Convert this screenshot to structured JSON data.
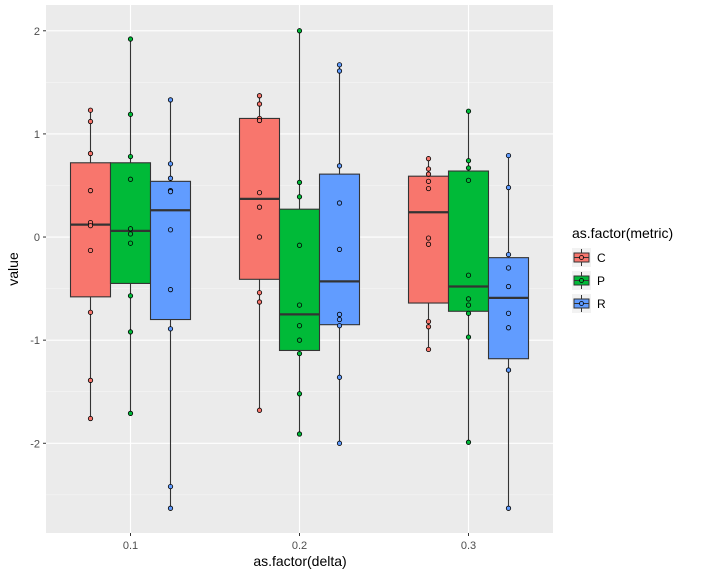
{
  "chart_data": {
    "type": "boxplot",
    "title": "",
    "xlabel": "as.factor(delta)",
    "ylabel": "value",
    "ylim": [
      -2.87,
      2.25
    ],
    "yticks": [
      -2,
      -1,
      0,
      1,
      2
    ],
    "ytick_labels": [
      "-2",
      "-1",
      "0",
      "1",
      "2"
    ],
    "categories": [
      "0.1",
      "0.2",
      "0.3"
    ],
    "grid": true,
    "legend": {
      "title": "as.factor(metric)",
      "placement": "right",
      "entries": [
        "C",
        "P",
        "R"
      ]
    },
    "colors": {
      "C": "#F8766D",
      "P": "#00BA38",
      "R": "#619CFF"
    },
    "series": [
      {
        "name": "C",
        "boxes": [
          {
            "q1": -0.58,
            "median": 0.12,
            "q3": 0.72,
            "min": -1.76,
            "max": 1.23,
            "points": [
              1.23,
              1.12,
              0.81,
              0.45,
              0.14,
              0.11,
              -0.13,
              -0.73,
              -1.39,
              -1.76
            ]
          },
          {
            "q1": -0.41,
            "median": 0.37,
            "q3": 1.15,
            "min": -1.68,
            "max": 1.37,
            "points": [
              1.37,
              1.29,
              1.15,
              1.13,
              0.43,
              0.29,
              0.0,
              -0.54,
              -0.63,
              -1.68
            ]
          },
          {
            "q1": -0.64,
            "median": 0.24,
            "q3": 0.59,
            "min": -1.09,
            "max": 0.76,
            "points": [
              0.76,
              0.66,
              0.61,
              0.54,
              0.47,
              -0.01,
              -0.07,
              -0.82,
              -0.87,
              -1.09
            ]
          }
        ]
      },
      {
        "name": "P",
        "boxes": [
          {
            "q1": -0.45,
            "median": 0.06,
            "q3": 0.72,
            "min": -1.71,
            "max": 1.92,
            "points": [
              1.92,
              1.19,
              0.78,
              0.56,
              0.08,
              0.03,
              -0.06,
              -0.57,
              -0.92,
              -1.71
            ]
          },
          {
            "q1": -1.1,
            "median": -0.75,
            "q3": 0.27,
            "min": -1.91,
            "max": 2.0,
            "points": [
              2.0,
              0.53,
              0.39,
              -0.08,
              -0.66,
              -0.86,
              -1.0,
              -1.13,
              -1.52,
              -1.91
            ]
          },
          {
            "q1": -0.72,
            "median": -0.48,
            "q3": 0.64,
            "min": -1.99,
            "max": 1.22,
            "points": [
              1.22,
              0.74,
              0.67,
              0.55,
              -0.37,
              -0.6,
              -0.66,
              -0.74,
              -0.97,
              -1.99
            ]
          }
        ]
      },
      {
        "name": "R",
        "boxes": [
          {
            "q1": -0.8,
            "median": 0.26,
            "q3": 0.54,
            "min": -2.63,
            "max": 1.33,
            "points": [
              1.33,
              0.71,
              0.57,
              0.45,
              0.44,
              0.07,
              -0.51,
              -0.89,
              -2.42,
              -2.63
            ]
          },
          {
            "q1": -0.85,
            "median": -0.43,
            "q3": 0.61,
            "min": -2.0,
            "max": 1.67,
            "points": [
              1.67,
              1.61,
              0.69,
              0.33,
              -0.12,
              -0.75,
              -0.8,
              -0.86,
              -1.36,
              -2.0
            ]
          },
          {
            "q1": -1.18,
            "median": -0.59,
            "q3": -0.2,
            "min": -2.63,
            "max": 0.79,
            "points": [
              0.79,
              0.48,
              -0.17,
              -0.3,
              -0.48,
              -0.74,
              -0.88,
              -1.29,
              -1.29,
              -2.63
            ]
          }
        ]
      }
    ]
  }
}
